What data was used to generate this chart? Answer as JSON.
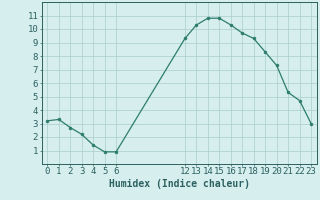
{
  "x": [
    0,
    1,
    2,
    3,
    4,
    5,
    6,
    12,
    13,
    14,
    15,
    16,
    17,
    18,
    19,
    20,
    21,
    22,
    23
  ],
  "y": [
    3.2,
    3.3,
    2.7,
    2.2,
    1.4,
    0.9,
    0.9,
    9.3,
    10.3,
    10.8,
    10.8,
    10.3,
    9.7,
    9.3,
    8.3,
    7.3,
    5.3,
    4.7,
    3.0
  ],
  "xlabel": "Humidex (Indice chaleur)",
  "xlim": [
    -0.5,
    23.5
  ],
  "ylim": [
    0.0,
    12.0
  ],
  "xticks": [
    0,
    1,
    2,
    3,
    4,
    5,
    6,
    12,
    13,
    14,
    15,
    16,
    17,
    18,
    19,
    20,
    21,
    22,
    23
  ],
  "yticks": [
    1,
    2,
    3,
    4,
    5,
    6,
    7,
    8,
    9,
    10,
    11
  ],
  "line_color": "#2d7d6e",
  "marker_color": "#2d7d6e",
  "bg_color": "#d6eeee",
  "grid_color": "#aacccc",
  "axis_color": "#2d6060",
  "tick_color": "#2d6060",
  "label_color": "#2d6060",
  "xlabel_fontsize": 7,
  "tick_fontsize": 6.5
}
